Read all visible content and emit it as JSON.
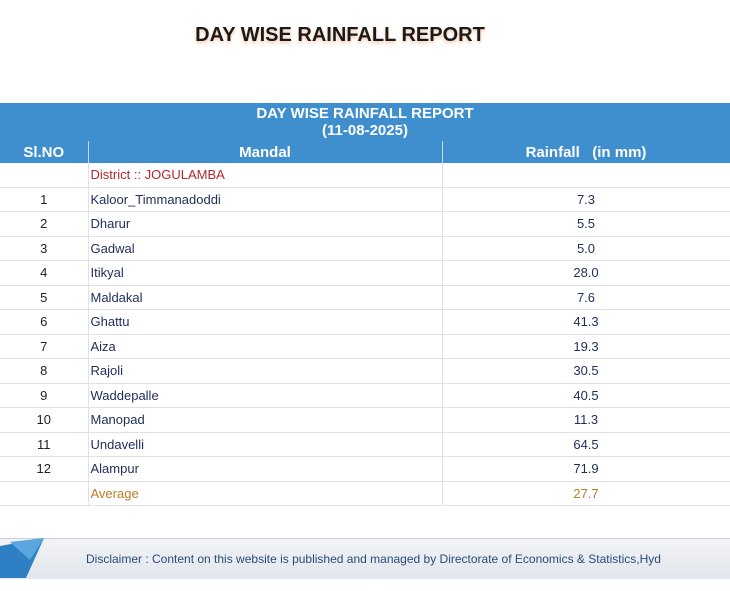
{
  "page": {
    "title": "DAY WISE RAINFALL REPORT"
  },
  "report": {
    "title": "DAY WISE RAINFALL REPORT",
    "date": "(11-08-2025)",
    "columns": {
      "slno": "Sl.NO",
      "mandal": "Mandal",
      "rainfall": "Rainfall   (in mm)"
    },
    "district": "District :: JOGULAMBA",
    "rows": [
      {
        "slno": "1",
        "mandal": "Kaloor_Timmanadoddi",
        "rainfall": "7.3"
      },
      {
        "slno": "2",
        "mandal": "Dharur",
        "rainfall": "5.5"
      },
      {
        "slno": "3",
        "mandal": "Gadwal",
        "rainfall": "5.0"
      },
      {
        "slno": "4",
        "mandal": "Itikyal",
        "rainfall": "28.0"
      },
      {
        "slno": "5",
        "mandal": "Maldakal",
        "rainfall": "7.6"
      },
      {
        "slno": "6",
        "mandal": "Ghattu",
        "rainfall": "41.3"
      },
      {
        "slno": "7",
        "mandal": "Aiza",
        "rainfall": "19.3"
      },
      {
        "slno": "8",
        "mandal": "Rajoli",
        "rainfall": "30.5"
      },
      {
        "slno": "9",
        "mandal": "Waddepalle",
        "rainfall": "40.5"
      },
      {
        "slno": "10",
        "mandal": "Manopad",
        "rainfall": "11.3"
      },
      {
        "slno": "11",
        "mandal": "Undavelli",
        "rainfall": "64.5"
      },
      {
        "slno": "12",
        "mandal": "Alampur",
        "rainfall": "71.9"
      }
    ],
    "average_label": "Average",
    "average_value": "27.7"
  },
  "footer": {
    "disclaimer": "Disclaimer : Content on this website is published and managed by Directorate of Economics & Statistics,Hyd"
  },
  "colors": {
    "header_bg": "#3f8fcf",
    "district": "#b4262d",
    "average": "#c07a25",
    "mandal_text": "#1f2d5a"
  }
}
